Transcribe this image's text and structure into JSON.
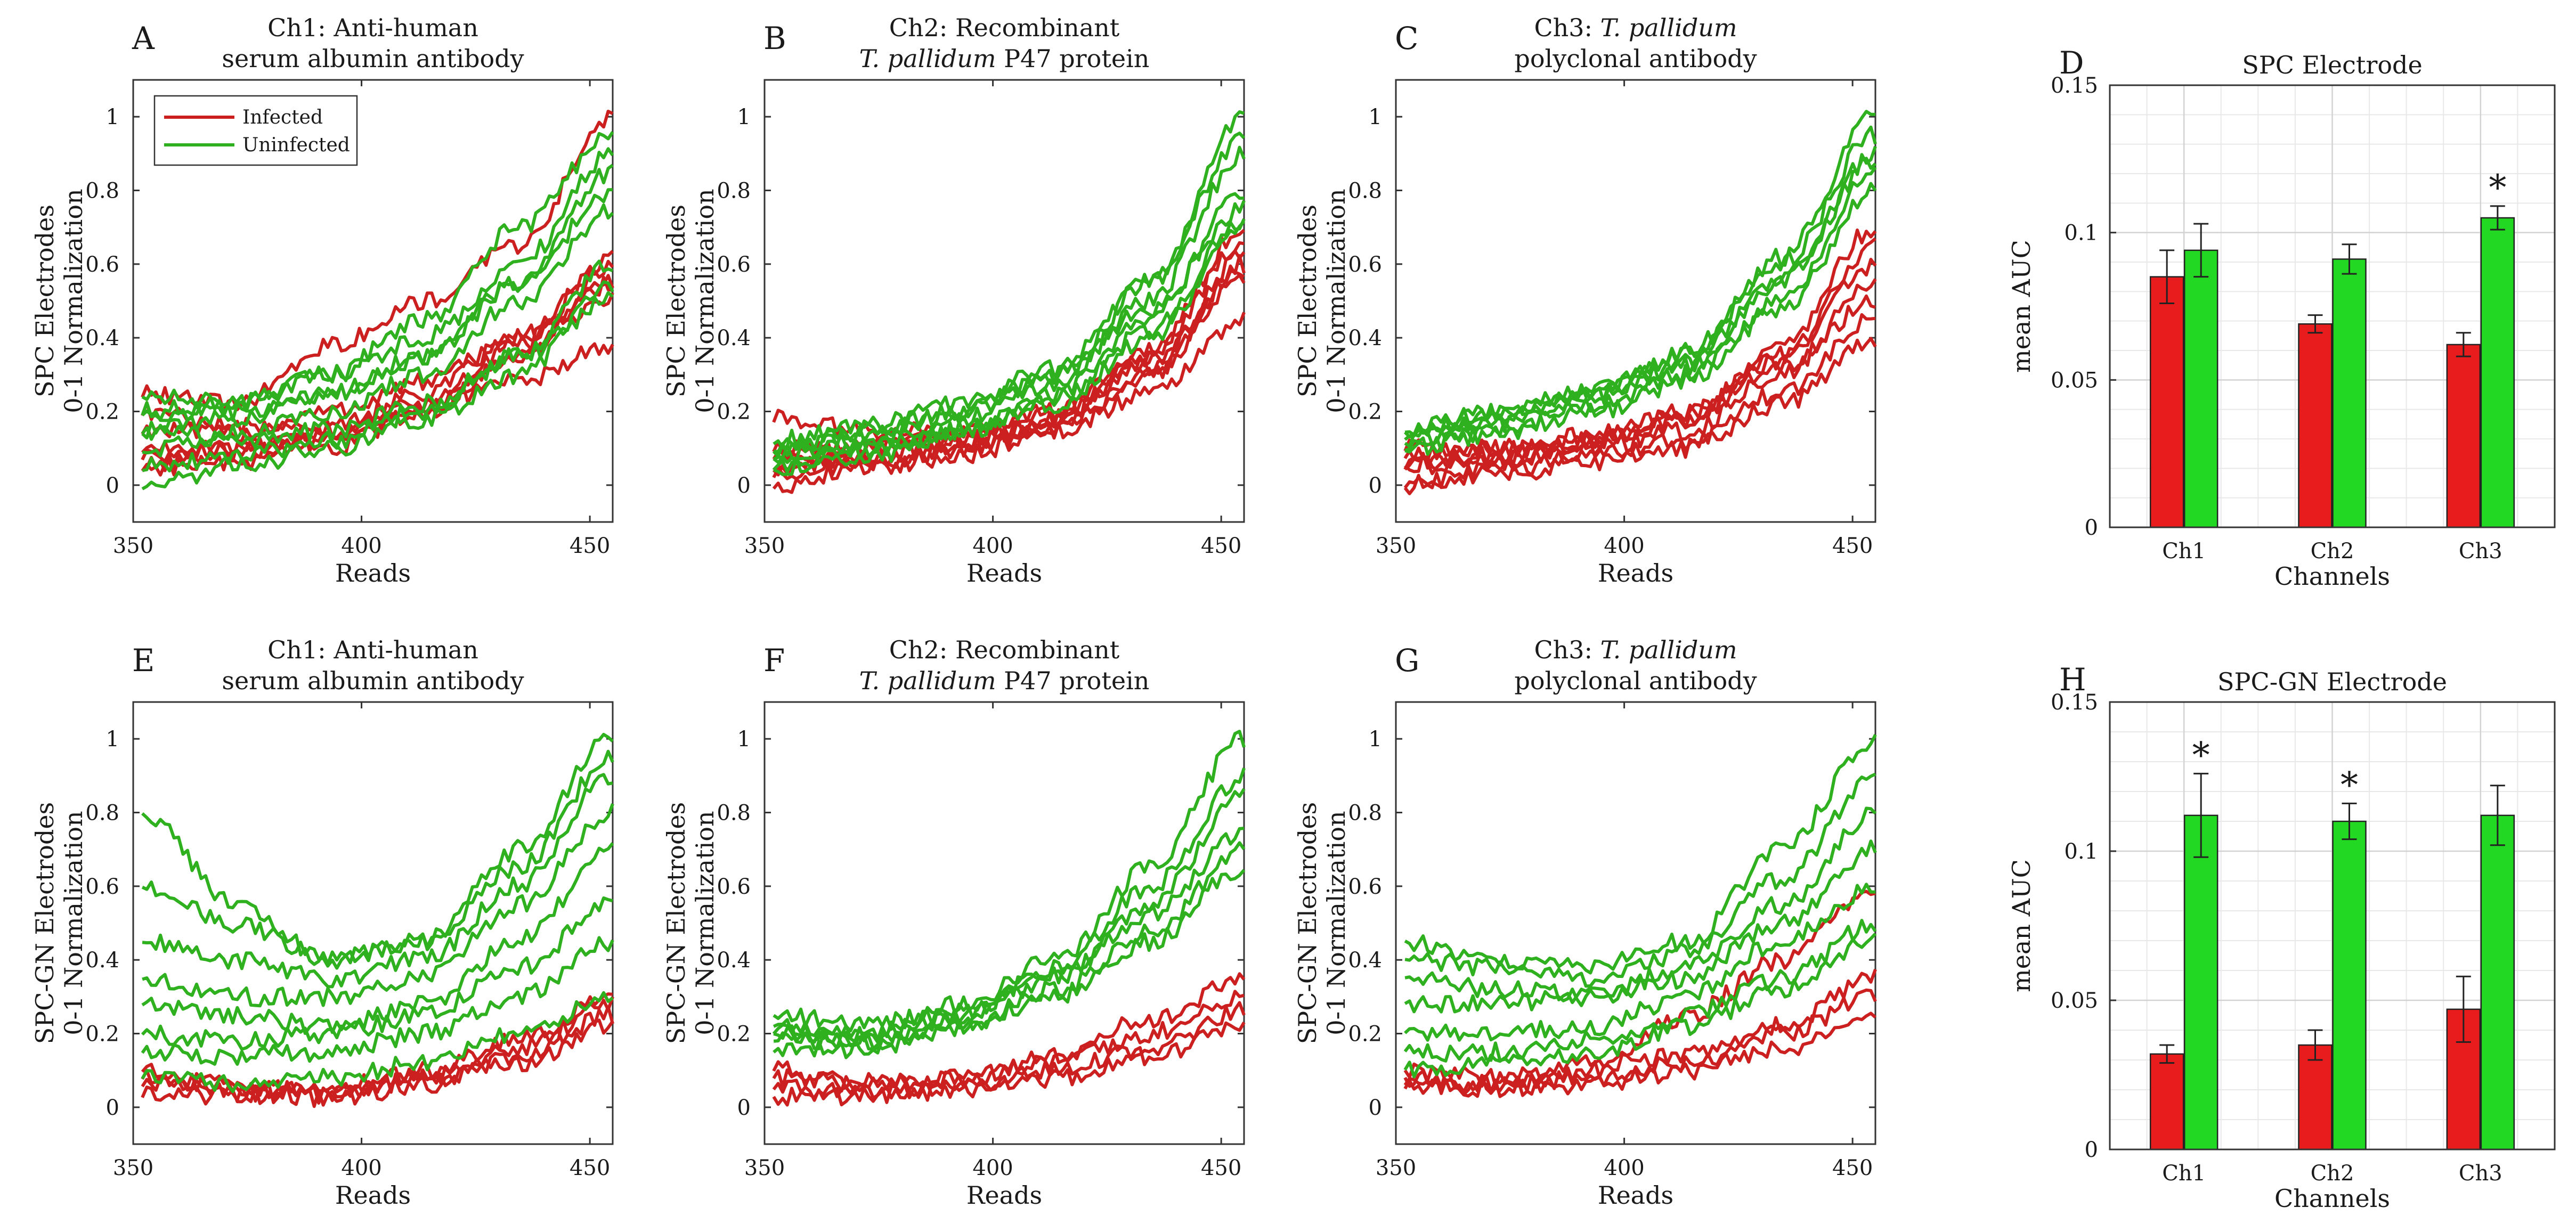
{
  "colors": {
    "infected_line": "#cc1f1f",
    "uninfected_line": "#2eb01f",
    "infected_bar": "#e81c1c",
    "uninfected_bar": "#22d822"
  },
  "legend": {
    "infected": "Infected",
    "uninfected": "Uninfected"
  },
  "chart_data": [
    {
      "panel": "A",
      "type": "line",
      "title_lines": [
        "Ch1:  Anti-human",
        "serum albumin antibody"
      ],
      "title_italic": [
        "",
        ""
      ],
      "title_tail": [
        "",
        ""
      ],
      "xlabel": "Reads",
      "ylabel_lines": [
        "SPC Electrodes",
        "0-1 Normalization"
      ],
      "xlim": [
        350,
        455
      ],
      "ylim": [
        -0.1,
        1.1
      ],
      "xticks": [
        350,
        400,
        450
      ],
      "yticks": [
        0,
        0.2,
        0.4,
        0.6,
        0.8,
        1
      ],
      "legend": true,
      "infected_curves": [
        [
          0.05,
          0.1,
          0.15,
          0.25,
          0.4,
          0.6
        ],
        [
          0.1,
          0.09,
          0.12,
          0.2,
          0.35,
          0.55
        ],
        [
          0.05,
          0.06,
          0.1,
          0.2,
          0.35,
          0.55
        ],
        [
          0.15,
          0.14,
          0.2,
          0.28,
          0.4,
          0.5
        ],
        [
          0.08,
          0.1,
          0.14,
          0.22,
          0.38,
          0.62
        ],
        [
          0.25,
          0.22,
          0.38,
          0.5,
          0.65,
          1.0
        ],
        [
          0.2,
          0.16,
          0.17,
          0.22,
          0.28,
          0.38
        ]
      ],
      "uninfected_curves": [
        [
          0.2,
          0.22,
          0.3,
          0.45,
          0.7,
          0.95
        ],
        [
          0.15,
          0.18,
          0.25,
          0.35,
          0.55,
          0.8
        ],
        [
          0.25,
          0.22,
          0.3,
          0.4,
          0.6,
          0.9
        ],
        [
          0.1,
          0.14,
          0.2,
          0.3,
          0.5,
          0.75
        ],
        [
          0.05,
          0.08,
          0.12,
          0.2,
          0.35,
          0.6
        ],
        [
          0.0,
          0.05,
          0.1,
          0.18,
          0.3,
          0.55
        ],
        [
          0.2,
          0.2,
          0.25,
          0.35,
          0.55,
          0.85
        ],
        [
          0.15,
          0.12,
          0.15,
          0.22,
          0.35,
          0.5
        ]
      ]
    },
    {
      "panel": "B",
      "type": "line",
      "title_lines": [
        "Ch2:  Recombinant",
        ""
      ],
      "title_italic": [
        "",
        "T. pallidum"
      ],
      "title_tail": [
        "",
        " P47 protein"
      ],
      "xlabel": "Reads",
      "ylabel_lines": [
        "SPC Electrodes",
        "0-1 Normalization"
      ],
      "xlim": [
        350,
        455
      ],
      "ylim": [
        -0.1,
        1.1
      ],
      "xticks": [
        350,
        400,
        450
      ],
      "yticks": [
        0,
        0.2,
        0.4,
        0.6,
        0.8,
        1
      ],
      "legend": false,
      "infected_curves": [
        [
          0.05,
          0.07,
          0.1,
          0.16,
          0.3,
          0.6
        ],
        [
          0.0,
          0.05,
          0.08,
          0.15,
          0.25,
          0.45
        ],
        [
          0.08,
          0.1,
          0.12,
          0.18,
          0.32,
          0.62
        ],
        [
          0.03,
          0.06,
          0.1,
          0.18,
          0.35,
          0.65
        ],
        [
          0.1,
          0.1,
          0.14,
          0.2,
          0.34,
          0.55
        ],
        [
          0.18,
          0.15,
          0.14,
          0.2,
          0.36,
          0.7
        ],
        [
          0.05,
          0.08,
          0.12,
          0.16,
          0.3,
          0.58
        ]
      ],
      "uninfected_curves": [
        [
          0.1,
          0.15,
          0.2,
          0.3,
          0.55,
          0.95
        ],
        [
          0.08,
          0.12,
          0.18,
          0.28,
          0.5,
          0.9
        ],
        [
          0.05,
          0.1,
          0.15,
          0.25,
          0.45,
          0.8
        ],
        [
          0.1,
          0.14,
          0.2,
          0.3,
          0.48,
          0.75
        ],
        [
          0.08,
          0.1,
          0.15,
          0.22,
          0.4,
          0.7
        ],
        [
          0.12,
          0.16,
          0.22,
          0.32,
          0.55,
          1.0
        ],
        [
          0.05,
          0.08,
          0.14,
          0.24,
          0.42,
          0.72
        ]
      ]
    },
    {
      "panel": "C",
      "type": "line",
      "title_lines": [
        "Ch3:  ",
        "polyclonal antibody"
      ],
      "title_italic": [
        "T. pallidum",
        ""
      ],
      "title_tail": [
        "",
        ""
      ],
      "xlabel": "Reads",
      "ylabel_lines": [
        "SPC Electrodes",
        "0-1 Normalization"
      ],
      "xlim": [
        350,
        455
      ],
      "ylim": [
        -0.1,
        1.1
      ],
      "xticks": [
        350,
        400,
        450
      ],
      "yticks": [
        0,
        0.2,
        0.4,
        0.6,
        0.8,
        1
      ],
      "legend": false,
      "infected_curves": [
        [
          0.05,
          0.06,
          0.1,
          0.15,
          0.3,
          0.55
        ],
        [
          0.0,
          0.04,
          0.08,
          0.12,
          0.25,
          0.45
        ],
        [
          0.08,
          0.1,
          0.12,
          0.2,
          0.35,
          0.6
        ],
        [
          0.05,
          0.08,
          0.12,
          0.18,
          0.38,
          0.7
        ],
        [
          0.1,
          0.1,
          0.14,
          0.2,
          0.32,
          0.5
        ],
        [
          0.0,
          0.03,
          0.06,
          0.1,
          0.22,
          0.4
        ],
        [
          0.06,
          0.08,
          0.12,
          0.18,
          0.34,
          0.65
        ]
      ],
      "uninfected_curves": [
        [
          0.15,
          0.2,
          0.25,
          0.35,
          0.6,
          0.95
        ],
        [
          0.12,
          0.18,
          0.25,
          0.32,
          0.55,
          0.9
        ],
        [
          0.1,
          0.15,
          0.22,
          0.3,
          0.5,
          0.85
        ],
        [
          0.15,
          0.2,
          0.26,
          0.36,
          0.62,
          1.0
        ],
        [
          0.1,
          0.14,
          0.2,
          0.28,
          0.48,
          0.8
        ],
        [
          0.13,
          0.17,
          0.24,
          0.33,
          0.56,
          0.88
        ]
      ]
    },
    {
      "panel": "D",
      "type": "bar",
      "title": "SPC Electrode",
      "xlabel": "Channels",
      "ylabel": "mean AUC",
      "categories": [
        "Ch1",
        "Ch2",
        "Ch3"
      ],
      "ylim": [
        0,
        0.15
      ],
      "yticks": [
        0,
        0.05,
        0.1,
        0.15
      ],
      "ytick_labels": [
        "0",
        "0.05",
        "0.1",
        "0.15"
      ],
      "series": [
        {
          "name": "Infected",
          "values": [
            0.085,
            0.069,
            0.062
          ],
          "errors": [
            0.009,
            0.003,
            0.004
          ]
        },
        {
          "name": "Uninfected",
          "values": [
            0.094,
            0.091,
            0.105
          ],
          "errors": [
            0.009,
            0.005,
            0.004
          ]
        }
      ],
      "significance": [
        "",
        "",
        "*"
      ]
    },
    {
      "panel": "E",
      "type": "line",
      "title_lines": [
        "Ch1:  Anti-human",
        "serum albumin antibody"
      ],
      "title_italic": [
        "",
        ""
      ],
      "title_tail": [
        "",
        ""
      ],
      "xlabel": "Reads",
      "ylabel_lines": [
        "SPC-GN Electrodes",
        "0-1 Normalization"
      ],
      "xlim": [
        350,
        455
      ],
      "ylim": [
        -0.1,
        1.1
      ],
      "xticks": [
        350,
        400,
        450
      ],
      "yticks": [
        0,
        0.2,
        0.4,
        0.6,
        0.8,
        1
      ],
      "legend": false,
      "infected_curves": [
        [
          0.1,
          0.05,
          0.02,
          0.06,
          0.14,
          0.25
        ],
        [
          0.06,
          0.04,
          0.03,
          0.08,
          0.16,
          0.28
        ],
        [
          0.08,
          0.06,
          0.04,
          0.07,
          0.12,
          0.22
        ],
        [
          0.03,
          0.03,
          0.05,
          0.1,
          0.18,
          0.3
        ]
      ],
      "uninfected_curves": [
        [
          0.8,
          0.55,
          0.4,
          0.45,
          0.7,
          1.0
        ],
        [
          0.6,
          0.5,
          0.4,
          0.45,
          0.65,
          0.95
        ],
        [
          0.45,
          0.4,
          0.35,
          0.4,
          0.6,
          0.9
        ],
        [
          0.35,
          0.3,
          0.3,
          0.35,
          0.55,
          0.8
        ],
        [
          0.28,
          0.25,
          0.22,
          0.28,
          0.45,
          0.7
        ],
        [
          0.2,
          0.18,
          0.2,
          0.25,
          0.38,
          0.55
        ],
        [
          0.15,
          0.14,
          0.15,
          0.2,
          0.3,
          0.45
        ],
        [
          0.08,
          0.06,
          0.08,
          0.12,
          0.2,
          0.3
        ]
      ]
    },
    {
      "panel": "F",
      "type": "line",
      "title_lines": [
        "Ch2:  Recombinant",
        ""
      ],
      "title_italic": [
        "",
        "T. pallidum"
      ],
      "title_tail": [
        "",
        " P47 protein"
      ],
      "xlabel": "Reads",
      "ylabel_lines": [
        "SPC-GN Electrodes",
        "0-1 Normalization"
      ],
      "xlim": [
        350,
        455
      ],
      "ylim": [
        -0.1,
        1.1
      ],
      "xticks": [
        350,
        400,
        450
      ],
      "yticks": [
        0,
        0.2,
        0.4,
        0.6,
        0.8,
        1
      ],
      "legend": false,
      "infected_curves": [
        [
          0.05,
          0.04,
          0.05,
          0.08,
          0.14,
          0.22
        ],
        [
          0.08,
          0.06,
          0.08,
          0.12,
          0.2,
          0.3
        ],
        [
          0.1,
          0.07,
          0.08,
          0.14,
          0.24,
          0.35
        ],
        [
          0.03,
          0.03,
          0.05,
          0.1,
          0.16,
          0.26
        ]
      ],
      "uninfected_curves": [
        [
          0.25,
          0.22,
          0.28,
          0.4,
          0.65,
          1.0
        ],
        [
          0.2,
          0.2,
          0.25,
          0.38,
          0.6,
          0.9
        ],
        [
          0.18,
          0.18,
          0.24,
          0.35,
          0.55,
          0.85
        ],
        [
          0.22,
          0.2,
          0.26,
          0.36,
          0.52,
          0.75
        ],
        [
          0.15,
          0.16,
          0.22,
          0.32,
          0.48,
          0.7
        ],
        [
          0.2,
          0.18,
          0.22,
          0.3,
          0.45,
          0.65
        ]
      ]
    },
    {
      "panel": "G",
      "type": "line",
      "title_lines": [
        "Ch3:  ",
        "polyclonal antibody"
      ],
      "title_italic": [
        "T. pallidum",
        ""
      ],
      "title_tail": [
        "",
        ""
      ],
      "xlabel": "Reads",
      "ylabel_lines": [
        "SPC-GN Electrodes",
        "0-1 Normalization"
      ],
      "xlim": [
        350,
        455
      ],
      "ylim": [
        -0.1,
        1.1
      ],
      "xticks": [
        350,
        400,
        450
      ],
      "yticks": [
        0,
        0.2,
        0.4,
        0.6,
        0.8,
        1
      ],
      "legend": false,
      "infected_curves": [
        [
          0.06,
          0.05,
          0.06,
          0.1,
          0.16,
          0.25
        ],
        [
          0.05,
          0.06,
          0.08,
          0.12,
          0.2,
          0.3
        ],
        [
          0.08,
          0.06,
          0.1,
          0.25,
          0.4,
          0.6
        ],
        [
          0.1,
          0.08,
          0.12,
          0.14,
          0.22,
          0.35
        ]
      ],
      "uninfected_curves": [
        [
          0.45,
          0.4,
          0.38,
          0.45,
          0.7,
          1.0
        ],
        [
          0.4,
          0.38,
          0.35,
          0.42,
          0.62,
          0.9
        ],
        [
          0.35,
          0.32,
          0.3,
          0.38,
          0.55,
          0.8
        ],
        [
          0.28,
          0.28,
          0.3,
          0.35,
          0.5,
          0.7
        ],
        [
          0.2,
          0.2,
          0.22,
          0.3,
          0.45,
          0.6
        ],
        [
          0.15,
          0.15,
          0.18,
          0.25,
          0.35,
          0.5
        ],
        [
          0.1,
          0.12,
          0.15,
          0.22,
          0.32,
          0.45
        ]
      ]
    },
    {
      "panel": "H",
      "type": "bar",
      "title": "SPC-GN Electrode",
      "xlabel": "Channels",
      "ylabel": "mean AUC",
      "categories": [
        "Ch1",
        "Ch2",
        "Ch3"
      ],
      "ylim": [
        0,
        0.15
      ],
      "yticks": [
        0,
        0.05,
        0.1,
        0.15
      ],
      "ytick_labels": [
        "0",
        "0.05",
        "0.1",
        "0.15"
      ],
      "series": [
        {
          "name": "Infected",
          "values": [
            0.032,
            0.035,
            0.047
          ],
          "errors": [
            0.003,
            0.005,
            0.011
          ]
        },
        {
          "name": "Uninfected",
          "values": [
            0.112,
            0.11,
            0.112
          ],
          "errors": [
            0.014,
            0.006,
            0.01
          ]
        }
      ],
      "significance": [
        "*",
        "*",
        ""
      ]
    }
  ]
}
